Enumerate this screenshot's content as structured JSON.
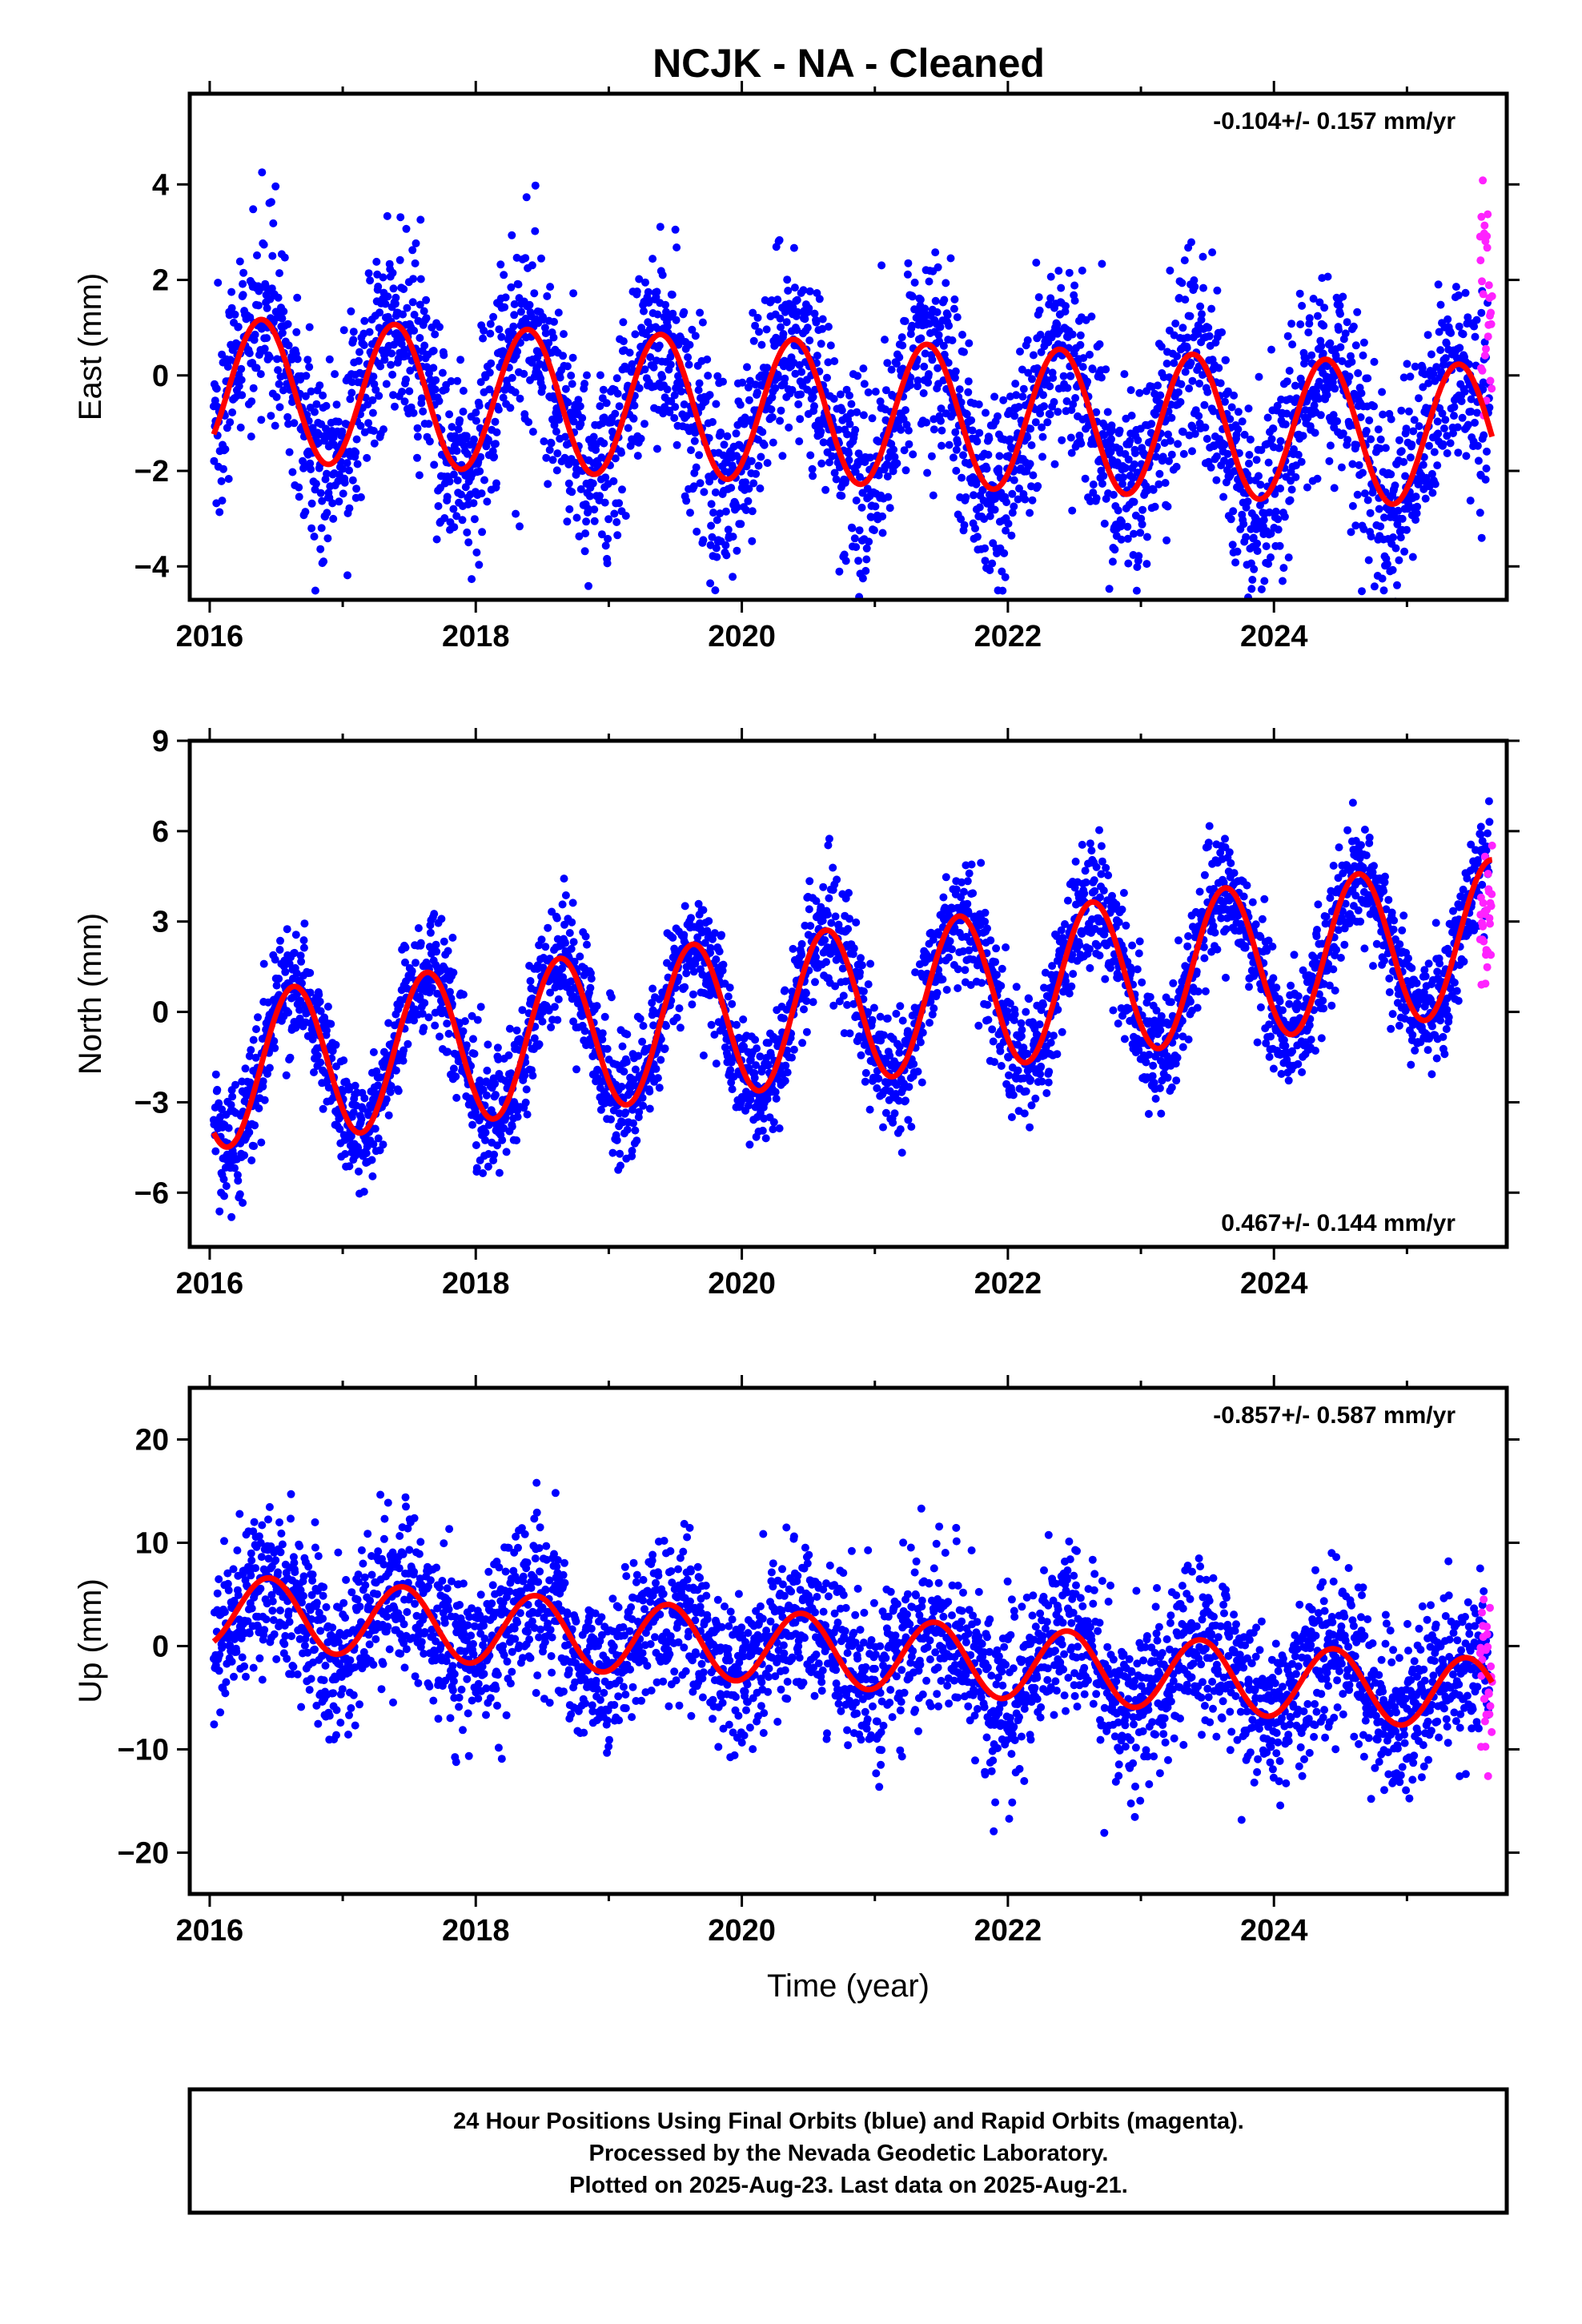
{
  "title": "NCJK  - NA - Cleaned",
  "colors": {
    "final_orbits": "#0000ff",
    "rapid_orbits": "#ff22ff",
    "model": "#ff0000",
    "frame": "#000000"
  },
  "footer": {
    "line1": "24 Hour Positions Using Final Orbits (blue) and Rapid Orbits (magenta).",
    "line2": "Processed by the Nevada Geodetic Laboratory.",
    "line3": "Plotted on 2025-Aug-23. Last data on 2025-Aug-21."
  },
  "chart_data": [
    {
      "type": "scatter",
      "ylabel": "East (mm)",
      "xlabel": "",
      "rate_label": "-0.104+/- 0.157 mm/yr",
      "rate_position": "top-right",
      "xlim": [
        2015.85,
        2025.75
      ],
      "ylim": [
        -4.7,
        5.9
      ],
      "xticks": [
        2016,
        2018,
        2020,
        2022,
        2024
      ],
      "xtick_labels": [
        "2016",
        "2018",
        "2020",
        "2022",
        "2024"
      ],
      "yticks": [
        -4,
        -2,
        0,
        2,
        4
      ],
      "ytick_labels": [
        "−4",
        "−2",
        "0",
        "2",
        "4"
      ],
      "model": {
        "offset": -0.28,
        "rate": -0.104,
        "cos_amp": -1.15,
        "sin_amp": 0.95,
        "start": 2016.03,
        "end": 2025.64
      },
      "final_orbits": {
        "start": 2016.03,
        "end": 2025.62,
        "n": 3300,
        "scatter_sd": 1.05
      },
      "rapid_orbits": {
        "start": 2025.55,
        "end": 2025.64,
        "n": 28,
        "scatter_sd": 1.1,
        "shift": 2.3
      }
    },
    {
      "type": "scatter",
      "ylabel": "North (mm)",
      "xlabel": "",
      "rate_label": "0.467+/- 0.144 mm/yr",
      "rate_position": "bottom-right",
      "xlim": [
        2015.85,
        2025.75
      ],
      "ylim": [
        -7.8,
        9.0
      ],
      "xticks": [
        2016,
        2018,
        2020,
        2022,
        2024
      ],
      "xtick_labels": [
        "2016",
        "2018",
        "2020",
        "2022",
        "2024"
      ],
      "yticks": [
        -6,
        -3,
        0,
        3,
        6,
        9
      ],
      "ytick_labels": [
        "−6",
        "−3",
        "0",
        "3",
        "6",
        "9"
      ],
      "model": {
        "offset": -2.0,
        "rate": 0.467,
        "cos_amp": -1.7,
        "sin_amp": -1.9,
        "start": 2016.03,
        "end": 2025.64
      },
      "final_orbits": {
        "start": 2016.03,
        "end": 2025.62,
        "n": 3300,
        "scatter_sd": 1.0
      },
      "rapid_orbits": {
        "start": 2025.55,
        "end": 2025.64,
        "n": 28,
        "scatter_sd": 1.3,
        "shift": -2.0
      }
    },
    {
      "type": "scatter",
      "ylabel": "Up (mm)",
      "xlabel": "Time (year)",
      "rate_label": "-0.857+/- 0.587 mm/yr",
      "rate_position": "top-right",
      "xlim": [
        2015.85,
        2025.75
      ],
      "ylim": [
        -24,
        25
      ],
      "xticks": [
        2016,
        2018,
        2020,
        2022,
        2024
      ],
      "xtick_labels": [
        "2016",
        "2018",
        "2020",
        "2022",
        "2024"
      ],
      "yticks": [
        -20,
        -10,
        0,
        10,
        20
      ],
      "ytick_labels": [
        "−20",
        "−10",
        "0",
        "10",
        "20"
      ],
      "model": {
        "offset": 3.5,
        "rate": -0.857,
        "cos_amp": -3.3,
        "sin_amp": 1.1,
        "start": 2016.03,
        "end": 2025.64
      },
      "final_orbits": {
        "start": 2016.03,
        "end": 2025.62,
        "n": 3300,
        "scatter_sd": 3.9
      },
      "rapid_orbits": {
        "start": 2025.55,
        "end": 2025.64,
        "n": 28,
        "scatter_sd": 4.0,
        "shift": 0.0
      }
    }
  ]
}
